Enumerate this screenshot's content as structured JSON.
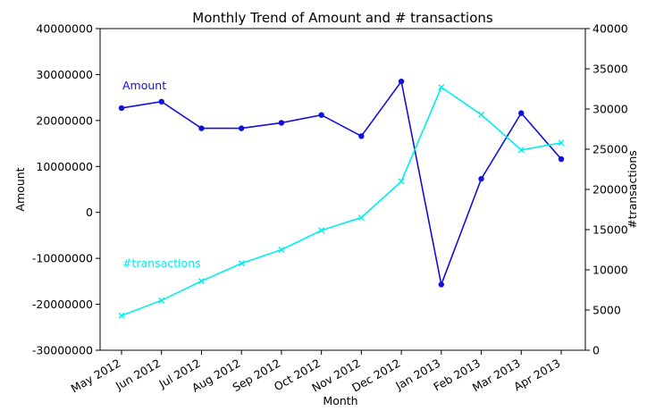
{
  "chart_data": {
    "type": "line",
    "title": "Monthly Trend of Amount and # transactions",
    "xlabel": "Month",
    "categories": [
      "May 2012",
      "Jun 2012",
      "Jul 2012",
      "Aug 2012",
      "Sep 2012",
      "Oct 2012",
      "Nov 2012",
      "Dec 2012",
      "Jan 2013",
      "Feb 2013",
      "Mar 2013",
      "Apr 2013"
    ],
    "left_axis": {
      "label": "Amount",
      "ylim": [
        -30000000,
        40000000
      ],
      "ticks": [
        "-30000000",
        "-20000000",
        "-10000000",
        "0",
        "10000000",
        "20000000",
        "30000000",
        "40000000"
      ]
    },
    "right_axis": {
      "label": "#transactions",
      "ylim": [
        0,
        40000
      ],
      "ticks": [
        "0",
        "5000",
        "10000",
        "15000",
        "20000",
        "25000",
        "30000",
        "35000",
        "40000"
      ]
    },
    "series": [
      {
        "name": "Amount",
        "axis": "left",
        "color": "#1111dd",
        "marker": "circle",
        "label_position": "upper-left",
        "values": [
          22700000,
          24100000,
          18300000,
          18300000,
          19500000,
          21200000,
          16600000,
          28500000,
          -15700000,
          7300000,
          21600000,
          11600000
        ]
      },
      {
        "name": "#transactions",
        "axis": "right",
        "color": "#00eeee",
        "marker": "x",
        "label_position": "lower-left",
        "values": [
          4300,
          6200,
          8600,
          10800,
          12500,
          14900,
          16500,
          21000,
          32700,
          29300,
          24900,
          25800
        ]
      }
    ],
    "grid": false,
    "x_tick_rotation": 30
  }
}
